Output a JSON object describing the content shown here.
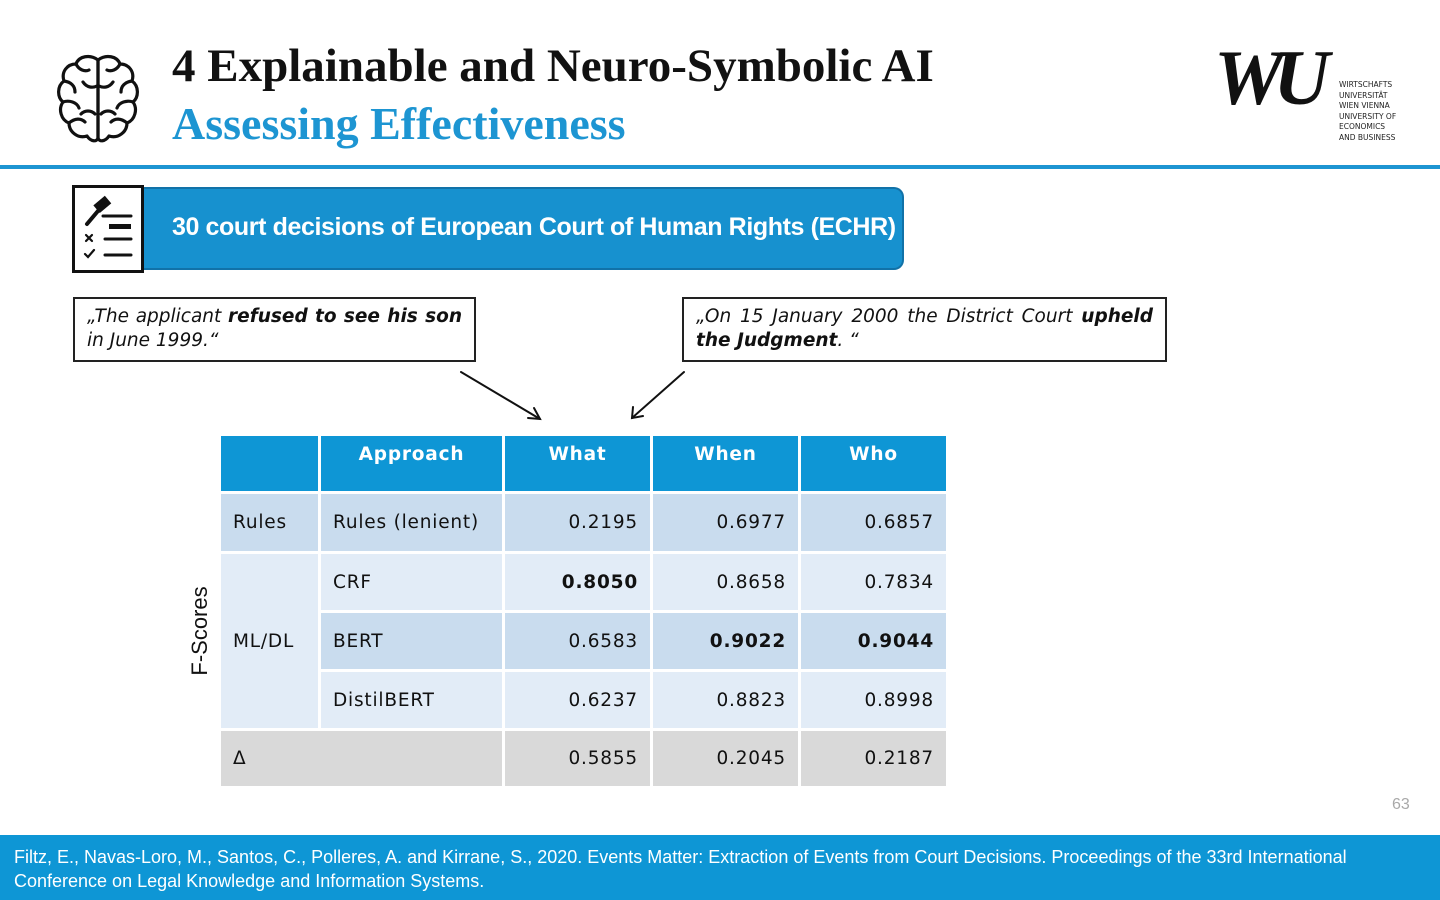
{
  "header": {
    "title": "4 Explainable and Neuro-Symbolic AI",
    "subtitle": "Assessing Effectiveness",
    "logo": {
      "mark": "WU",
      "text": "WIRTSCHAFTS\nUNIVERSITÄT\nWIEN VIENNA\nUNIVERSITY OF\nECONOMICS\nAND BUSINESS"
    },
    "accent_color": "#1d95d2"
  },
  "banner": {
    "text": "30 court decisions of European Court of Human Rights (ECHR)",
    "icon": "gavel-checklist-icon",
    "color": "#1791cf"
  },
  "quotes": {
    "left": {
      "pre": "„The applicant ",
      "bold": "refused to see his son",
      "post": " in June 1999.“"
    },
    "right": {
      "pre": "„On 15 January 2000 the District Court ",
      "bold": "upheld the Judgment",
      "post": ". “"
    }
  },
  "table": {
    "side_label": "F-Scores",
    "headers": [
      "",
      "Approach",
      "What",
      "When",
      "Who"
    ],
    "rows": [
      {
        "group": "Rules",
        "approach": "Rules (lenient)",
        "what": "0.2195",
        "when": "0.6977",
        "who": "0.6857"
      },
      {
        "group": "ML/DL",
        "approach": "CRF",
        "what": "0.8050",
        "when": "0.8658",
        "who": "0.7834"
      },
      {
        "approach": "BERT",
        "what": "0.6583",
        "when": "0.9022",
        "who": "0.9044"
      },
      {
        "approach": "DistilBERT",
        "what": "0.6237",
        "when": "0.8823",
        "who": "0.8998"
      }
    ],
    "delta": {
      "label": "Δ",
      "what": "0.5855",
      "when": "0.2045",
      "who": "0.2187"
    }
  },
  "page_number": "63",
  "footer": {
    "citation": "Filtz, E., Navas-Loro, M., Santos, C., Polleres, A. and Kirrane, S., 2020. Events Matter: Extraction of Events from Court Decisions. Proceedings of the 33rd International Conference on Legal Knowledge and Information Systems."
  }
}
